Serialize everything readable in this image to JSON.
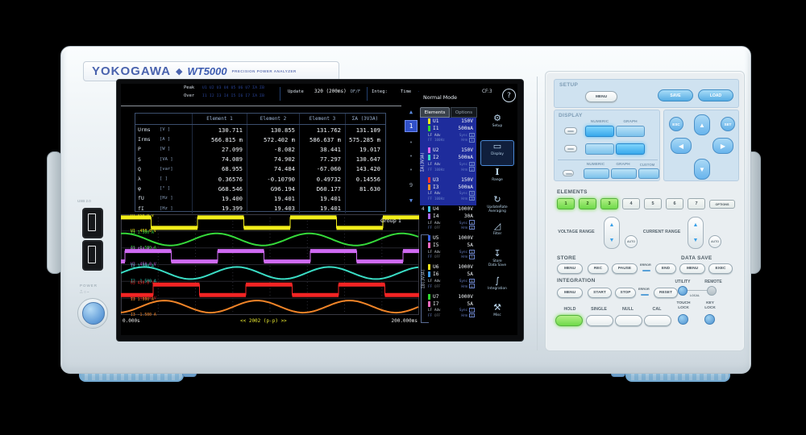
{
  "device": {
    "brand": "YOKOGAWA",
    "diamond": "◆",
    "model": "WT5000",
    "model_sub": "PRECISION POWER ANALYZER",
    "usb_label": "USB 2.0",
    "power_label": "POWER",
    "power_symbols": "⎍ ○ ⎯"
  },
  "screen": {
    "status": {
      "peak_label": "Peak",
      "peak_values": "U1 U2 U3 U4 U5 U6 U7 ΣA ΣB",
      "over_label": "Over",
      "over_values": "I1 I2 I3 I4 I5 I6 I7 ΣA ΣB",
      "update_label": "Update",
      "update_value": "320 (200ms)",
      "update_suffix": "DF/F",
      "integ_label": "Integ:",
      "time_label": "Time",
      "time_value": "------:--:--",
      "cf": "CF:3",
      "mode": "Normal Mode",
      "help": "?"
    },
    "tabs": {
      "elements": "Elements",
      "options": "Options"
    },
    "pager": {
      "up": "▲",
      "page": "1",
      "dots": [
        "•",
        "•",
        "•"
      ],
      "last": "9",
      "down": "▼"
    },
    "table": {
      "headers": [
        "Element 1",
        "Element 2",
        "Element 3",
        "ΣA (3V3A)"
      ],
      "rows": [
        {
          "name": "Urms",
          "unit": "[V  ]",
          "values": [
            "130.711",
            "130.855",
            "131.762",
            "131.109"
          ]
        },
        {
          "name": "Irms",
          "unit": "[A  ]",
          "values": [
            "566.815 m",
            "572.402 m",
            "586.637 m",
            "575.285 m"
          ]
        },
        {
          "name": "P",
          "unit": "[W  ]",
          "values": [
            "27.099",
            "-8.082",
            "38.441",
            "19.017"
          ]
        },
        {
          "name": "S",
          "unit": "[VA ]",
          "values": [
            "74.089",
            "74.902",
            "77.297",
            "130.647"
          ]
        },
        {
          "name": "Q",
          "unit": "[var]",
          "values": [
            "68.955",
            "74.484",
            "-67.060",
            "143.420"
          ]
        },
        {
          "name": "λ",
          "unit": "[   ]",
          "values": [
            "0.36576",
            "-0.10790",
            "0.49732",
            "0.14556"
          ]
        },
        {
          "name": "φ",
          "unit": "[°  ]",
          "values": [
            "G68.546",
            "G96.194",
            "D60.177",
            "81.630"
          ]
        },
        {
          "name": "fU",
          "unit": "[Hz ]",
          "values": [
            "19.400",
            "19.401",
            "19.401",
            ""
          ]
        },
        {
          "name": "fI",
          "unit": "[Hz ]",
          "values": [
            "19.399",
            "19.403",
            "19.401",
            ""
          ]
        }
      ]
    },
    "groups": {
      "a": "ΣA(3V3A)",
      "b": "ΣB(3V3A)",
      "el4": "4"
    },
    "elements": [
      {
        "u": "U1",
        "u_range": "150V",
        "u_color": "#f2e41a",
        "i": "I1",
        "i_range": "500mA",
        "i_color": "#2ed62e",
        "lf": "LF",
        "ff": "FF",
        "adv": "Adv",
        "freq": "100Hz",
        "sync": "Sync",
        "hrm": "Hrm",
        "num": "1"
      },
      {
        "u": "U2",
        "u_range": "150V",
        "u_color": "#df66f0",
        "i": "I2",
        "i_range": "500mA",
        "i_color": "#3adcc4",
        "lf": "LF",
        "ff": "FF",
        "adv": "Adv",
        "freq": "100Hz",
        "sync": "Sync",
        "hrm": "Hrm",
        "num": "2"
      },
      {
        "u": "U3",
        "u_range": "150V",
        "u_color": "#f23030",
        "i": "I3",
        "i_range": "500mA",
        "i_color": "#f59420",
        "lf": "LF",
        "ff": "FF",
        "adv": "Adv",
        "freq": "100Hz",
        "sync": "Sync",
        "hrm": "Hrm",
        "num": "3"
      },
      {
        "u": "U4",
        "u_range": "1000V",
        "u_color": "#3ec8f0",
        "i": "I4",
        "i_range": "30A",
        "i_color": "#a86af0",
        "lf": "LF",
        "ff": "FF",
        "adv": "Adv",
        "freq": "OFF",
        "sync": "Sync",
        "hrm": "Hrm",
        "num": "4"
      },
      {
        "u": "U5",
        "u_range": "1000V",
        "u_color": "#3a62e8",
        "i": "I5",
        "i_range": "5A",
        "i_color": "#f06ac0",
        "lf": "LF",
        "ff": "FF",
        "adv": "Adv",
        "freq": "OFF",
        "sync": "Sync",
        "hrm": "Hrm",
        "num": "5"
      },
      {
        "u": "U6",
        "u_range": "1000V",
        "u_color": "#f2e41a",
        "i": "I6",
        "i_range": "5A",
        "i_color": "#3a9af0",
        "lf": "LF",
        "ff": "FF",
        "adv": "Adv",
        "freq": "OFF",
        "sync": "Sync",
        "hrm": "Hrm",
        "num": "6"
      },
      {
        "u": "U7",
        "u_range": "1000V",
        "u_color": "#2ed62e",
        "i": "I7",
        "i_range": "5A",
        "i_color": "#f06ac0",
        "lf": "LF",
        "ff": "FF",
        "adv": "Adv",
        "freq": "OFF",
        "sync": "Sync",
        "hrm": "Hrm",
        "num": "7"
      }
    ],
    "menu_icons": [
      {
        "name": "setup",
        "glyph": "⚙",
        "label": "Setup"
      },
      {
        "name": "display",
        "glyph": "▭",
        "label": "Display",
        "selected": true
      },
      {
        "name": "range",
        "glyph": "I",
        "serif": true,
        "label": "Range"
      },
      {
        "name": "update-rate",
        "glyph": "↻",
        "label": "UpdateRate|Averaging"
      },
      {
        "name": "filter",
        "glyph": "◿",
        "label": "Filter"
      },
      {
        "name": "store-data-save",
        "glyph": "↧",
        "label": "Store|Data Save"
      },
      {
        "name": "integration",
        "glyph": "∫",
        "label": "Integration"
      },
      {
        "name": "misc",
        "glyph": "⚒",
        "label": "Misc"
      }
    ],
    "waveform": {
      "group": "Group 1",
      "x_left": "0.000s",
      "x_mid": "<< 2002 (p-p) >>",
      "x_right": "200.000ms",
      "traces": [
        {
          "ch": "U1",
          "kind": "square",
          "color": "#f2ee1a",
          "phase": 20,
          "top": "U1  450.0 V",
          "bottom": "U1 -450.0 V"
        },
        {
          "ch": "I1",
          "kind": "sine",
          "color": "#35d83a",
          "phase": 25,
          "top": "I1  1.500 A",
          "bottom": "I1 -1.500 A"
        },
        {
          "ch": "U2",
          "kind": "square",
          "color": "#cf6af2",
          "phase": -5,
          "top": "U2  450.0 V",
          "bottom": "U2 -450.0 V"
        },
        {
          "ch": "I2",
          "kind": "sine",
          "color": "#3adcc4",
          "phase": 0,
          "top": "I2  1.500 A",
          "bottom": "I2 -1.500 A"
        },
        {
          "ch": "U3",
          "kind": "square",
          "color": "#f22424",
          "phase": -40,
          "top": "U3  450.0 V",
          "bottom": "U3 -450.0 V"
        },
        {
          "ch": "I3",
          "kind": "sine",
          "color": "#f08428",
          "phase": -25,
          "top": "I3  1.500 A",
          "bottom": "I3 -1.500 A"
        }
      ]
    }
  },
  "panel": {
    "setup": {
      "title": "SETUP",
      "menu": "MENU",
      "save": "SAVE",
      "load": "LOAD"
    },
    "display": {
      "title": "DISPLAY",
      "row1_labels": [
        "NUMERIC",
        "GRAPH"
      ],
      "row3_labels": [
        "NUMERIC",
        "GRAPH",
        "CUSTOM"
      ]
    },
    "nav": {
      "esc": "ESC",
      "set": "SET",
      "up": "▲",
      "down": "▼",
      "left": "◀",
      "right": "▶"
    },
    "elements": {
      "title": "ELEMENTS",
      "keys": [
        "1",
        "2",
        "3",
        "4",
        "5",
        "6",
        "7"
      ],
      "options": "OPTIONS"
    },
    "ranges": {
      "voltage": "VOLTAGE RANGE",
      "current": "CURRENT RANGE",
      "auto": "AUTO",
      "up": "▲",
      "down": "▼"
    },
    "store": {
      "title": "STORE",
      "menu": "MENU",
      "rec": "REC",
      "pause": "PAUSE",
      "error": "ERROR",
      "end": "END"
    },
    "datasave": {
      "title": "DATA SAVE",
      "menu": "MENU",
      "exec": "EXEC"
    },
    "integration": {
      "title": "INTEGRATION",
      "menu": "MENU",
      "start": "START",
      "stop": "STOP",
      "error": "ERROR",
      "reset": "RESET"
    },
    "utility": {
      "utility": "UTILITY",
      "remote": "REMOTE",
      "local": "LOCAL"
    },
    "misc_keys": {
      "hold": "HOLD",
      "single": "SINGLE",
      "none": "NULL",
      "cal": "CAL",
      "touch1": "TOUCH",
      "touch2": "LOCK",
      "key1": "KEY",
      "key2": "LOCK"
    }
  }
}
